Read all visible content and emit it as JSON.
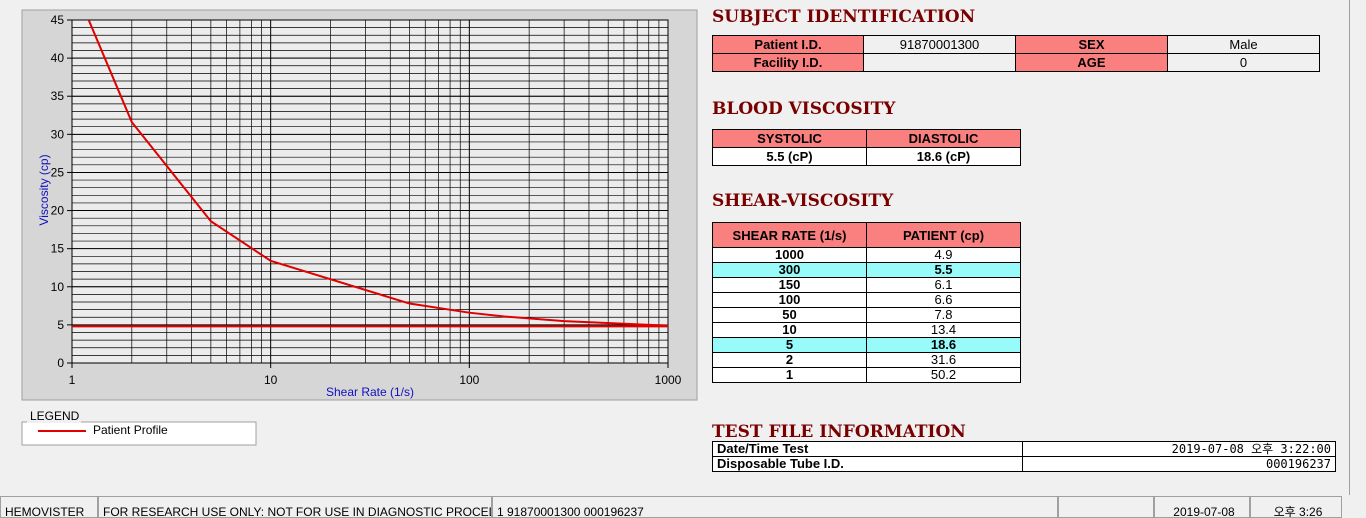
{
  "chart_data": {
    "type": "line",
    "xlabel": "Shear Rate (1/s)",
    "ylabel": "Viscosity (cp)",
    "xscale": "log",
    "xlim": [
      1,
      1000
    ],
    "xticks": [
      1,
      10,
      100,
      1000
    ],
    "ylim": [
      0,
      45
    ],
    "yticks": [
      0,
      5,
      10,
      15,
      20,
      25,
      30,
      35,
      40,
      45
    ],
    "grid": true,
    "reference_y": 4.8,
    "reference_color": "#e00000",
    "series": [
      {
        "name": "Patient Profile",
        "color": "#e00000",
        "x": [
          1,
          2,
          5,
          10,
          50,
          100,
          150,
          300,
          1000
        ],
        "values": [
          50.2,
          31.6,
          18.6,
          13.4,
          7.8,
          6.6,
          6.1,
          5.5,
          4.9
        ]
      }
    ],
    "legend_title": "LEGEND"
  },
  "subject": {
    "title": "SUBJECT IDENTIFICATION",
    "rows": [
      [
        "Patient I.D.",
        "91870001300",
        "SEX",
        "Male"
      ],
      [
        "Facility I.D.",
        null,
        "AGE",
        "0"
      ]
    ]
  },
  "blood": {
    "title": "BLOOD VISCOSITY",
    "header": [
      "SYSTOLIC",
      "DIASTOLIC"
    ],
    "values": [
      "5.5 (cP)",
      "18.6 (cP)"
    ]
  },
  "shear": {
    "title": "SHEAR-VISCOSITY",
    "header": [
      "SHEAR RATE (1/s)",
      "PATIENT (cp)"
    ],
    "highlight_rows": [
      1,
      6
    ],
    "rows": [
      [
        "1000",
        "4.9"
      ],
      [
        "300",
        "5.5"
      ],
      [
        "150",
        "6.1"
      ],
      [
        "100",
        "6.6"
      ],
      [
        "50",
        "7.8"
      ],
      [
        "10",
        "13.4"
      ],
      [
        "5",
        "18.6"
      ],
      [
        "2",
        "31.6"
      ],
      [
        "1",
        "50.2"
      ]
    ]
  },
  "testfile": {
    "title": "TEST FILE INFORMATION",
    "rows": [
      [
        "Date/Time Test",
        "2019-07-08  오후 3:22:00"
      ],
      [
        "Disposable Tube I.D.",
        "000196237"
      ]
    ]
  },
  "status": [
    "HEMOVISTER",
    "FOR RESEARCH USE ONLY: NOT FOR USE IN DIAGNOSTIC PROCEDURES",
    "1  91870001300  000196237",
    "2019-07-08",
    "오후 3:26"
  ]
}
